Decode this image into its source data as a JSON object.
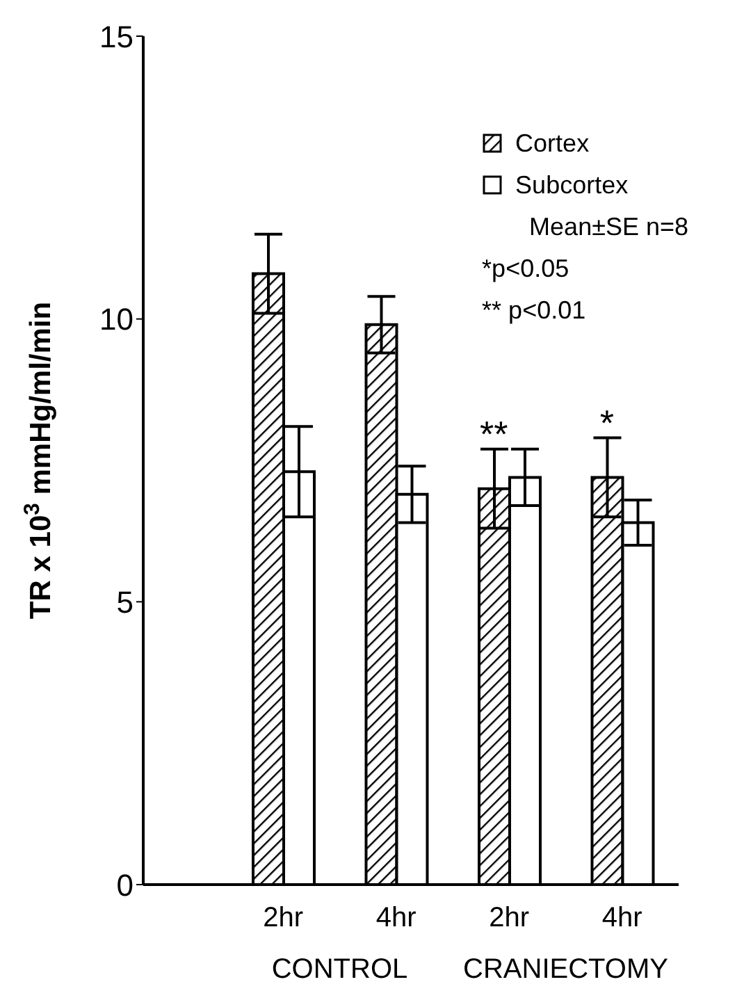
{
  "chart_data": {
    "type": "bar",
    "ylabel": "TR x 10$^{3}$ mmHg/ml/min",
    "categories": [
      "2hr",
      "4hr",
      "2hr",
      "4hr"
    ],
    "series": [
      {
        "name": "Cortex",
        "color": "#000000",
        "values": [
          10.8,
          9.9,
          7.0,
          7.2
        ],
        "errors": [
          0.7,
          0.5,
          0.7,
          0.7
        ]
      },
      {
        "name": "Subcortex",
        "color": "#ffffff",
        "values": [
          7.3,
          6.9,
          7.2,
          6.4
        ],
        "errors": [
          0.8,
          0.5,
          0.5,
          0.4
        ]
      }
    ],
    "ylim": [
      0,
      15
    ],
    "yticks": [
      0,
      5,
      10,
      15
    ],
    "legend": "top right",
    "annotations": [
      "CONTROL",
      "CRANIECTOMY",
      "Mean±SE n=8",
      "*p<0.05",
      "** p<0.01",
      "**",
      "*"
    ]
  }
}
